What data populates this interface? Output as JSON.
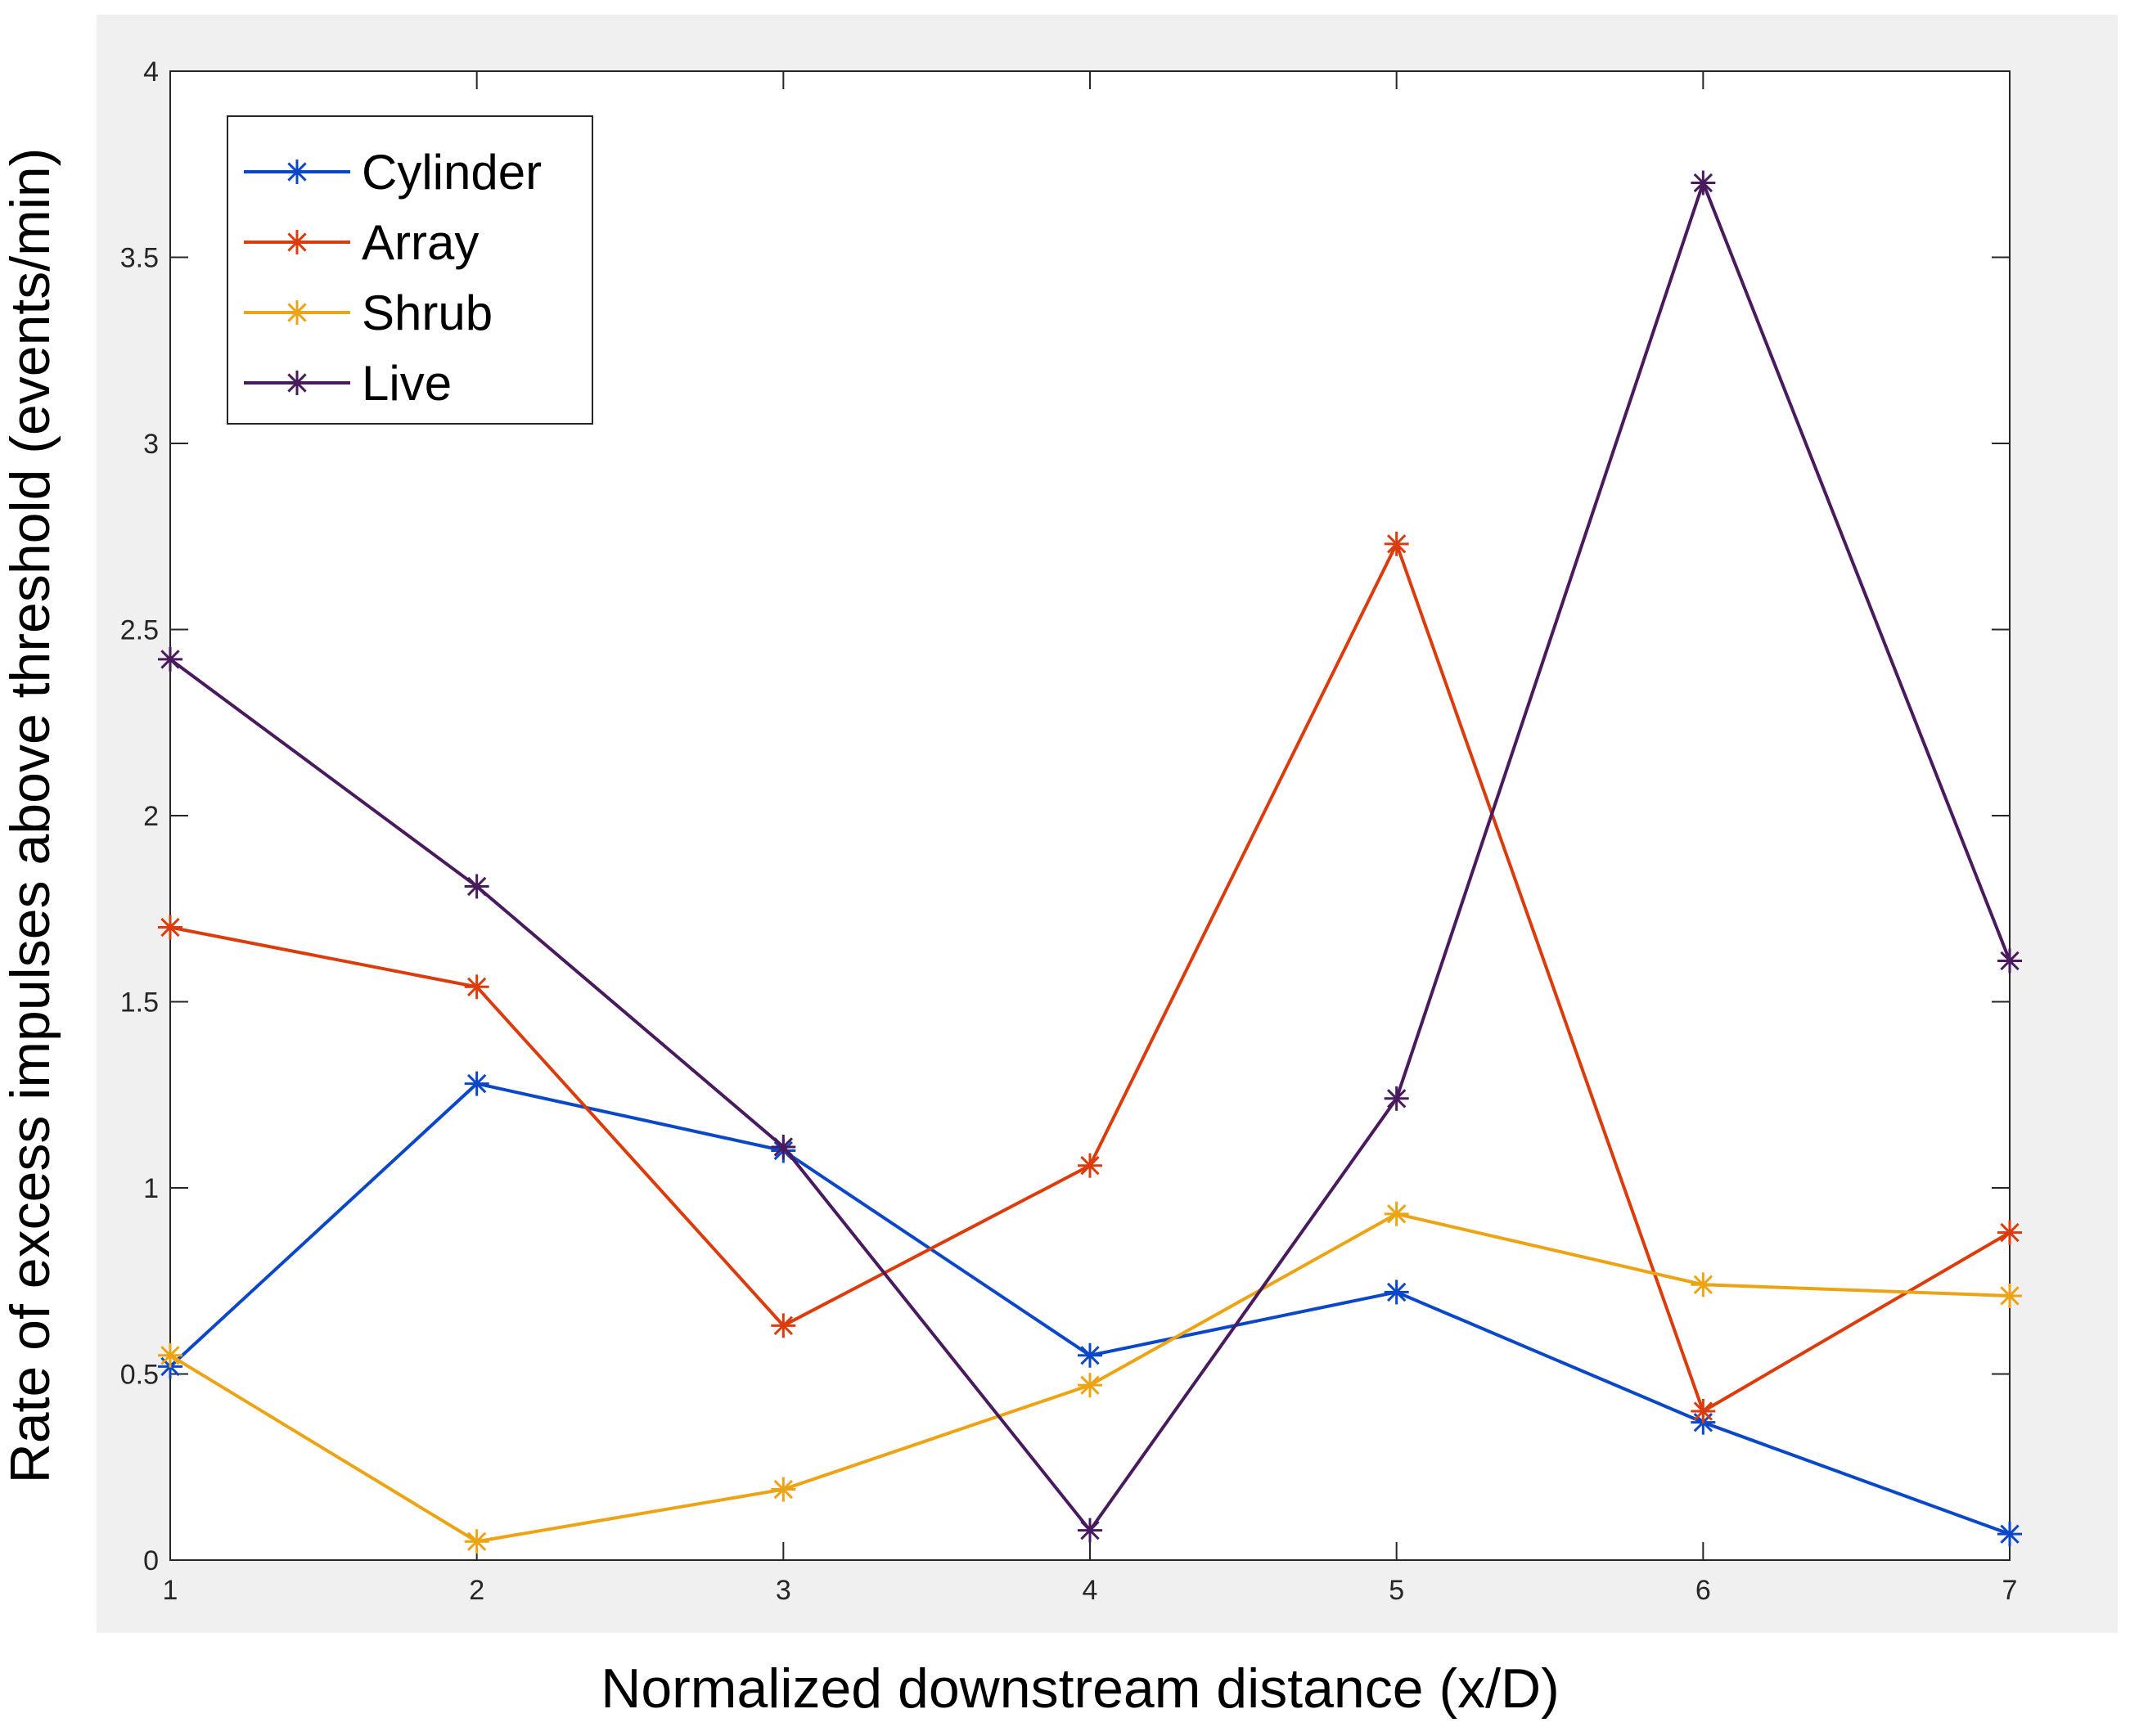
{
  "chart_data": {
    "type": "line",
    "title": "",
    "xlabel": "Normalized downstream distance (x/D)",
    "ylabel": "Rate of excess impulses above threshold (events/min)",
    "x": [
      1,
      2,
      3,
      4,
      5,
      6,
      7
    ],
    "xlim": [
      1,
      7
    ],
    "ylim": [
      0,
      4
    ],
    "xticks": [
      "1",
      "2",
      "3",
      "4",
      "5",
      "6",
      "7"
    ],
    "yticks": [
      "0",
      "0.5",
      "1",
      "1.5",
      "2",
      "2.5",
      "3",
      "3.5",
      "4"
    ],
    "grid": false,
    "legend_position": "top-left",
    "marker": "asterisk",
    "series": [
      {
        "name": "Cylinder",
        "color": "#0a48c8",
        "values": [
          0.52,
          1.28,
          1.1,
          0.55,
          0.72,
          0.37,
          0.07
        ]
      },
      {
        "name": "Array",
        "color": "#dc3c0c",
        "values": [
          1.7,
          1.54,
          0.63,
          1.06,
          2.73,
          0.4,
          0.88
        ]
      },
      {
        "name": "Shrub",
        "color": "#eda414",
        "values": [
          0.55,
          0.05,
          0.19,
          0.47,
          0.93,
          0.74,
          0.71
        ]
      },
      {
        "name": "Live",
        "color": "#4a1a5e",
        "values": [
          2.42,
          1.81,
          1.11,
          0.08,
          1.24,
          3.7,
          1.61
        ]
      }
    ]
  }
}
